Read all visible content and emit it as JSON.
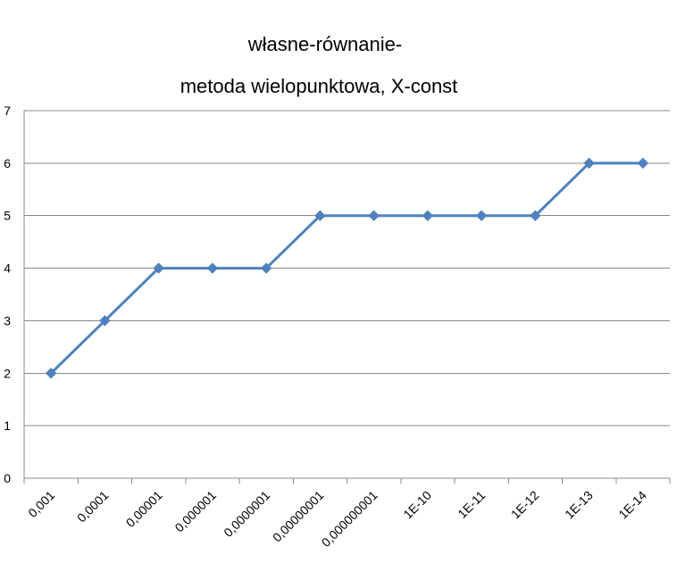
{
  "chart_data": {
    "type": "line",
    "title": "własne-równanie-",
    "subtitle": "metoda wielopunktowa, X-const",
    "xlabel": "",
    "ylabel": "",
    "categories": [
      "0,001",
      "0,0001",
      "0,00001",
      "0,000001",
      "0,0000001",
      "0,00000001",
      "0,000000001",
      "1E-10",
      "1E-11",
      "1E-12",
      "1E-13",
      "1E-14"
    ],
    "series": [
      {
        "values": [
          2,
          3,
          4,
          4,
          4,
          5,
          5,
          5,
          5,
          5,
          6,
          6
        ],
        "color": "#4F81BD",
        "marker": "diamond"
      }
    ],
    "ylim": [
      0,
      7
    ],
    "yticks": [
      0,
      1,
      2,
      3,
      4,
      5,
      6,
      7
    ],
    "grid": true,
    "gridColor": "#888888",
    "legend": "none"
  }
}
